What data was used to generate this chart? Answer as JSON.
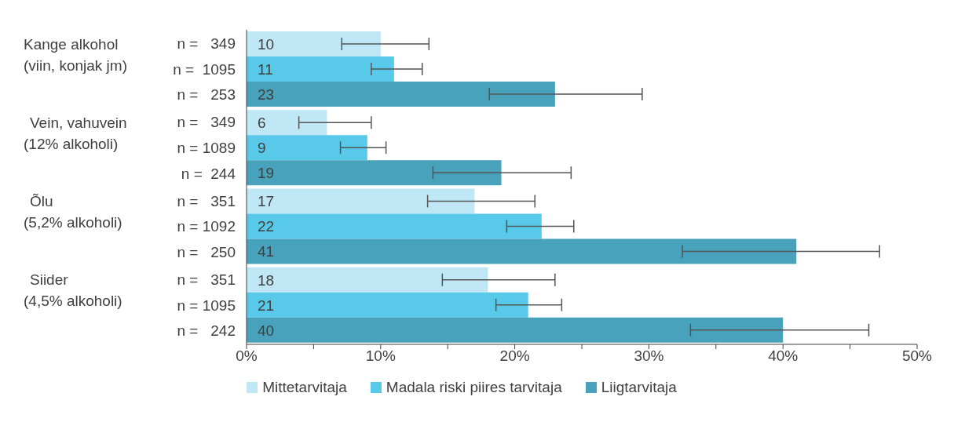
{
  "chart_data": {
    "type": "bar",
    "orientation": "horizontal",
    "categories": [
      "Kange alkohol\n(viin, konjak jm)",
      "Vein, vahuvein\n(12% alkoholi)",
      "Õlu\n(5,2% alkoholi)",
      "Siider\n(4,5% alkoholi)"
    ],
    "series": [
      {
        "name": "Mittetarvitaja",
        "color": "#bfe7f6",
        "values": [
          10,
          6,
          17,
          18
        ],
        "errors": [
          [
            7.1,
            13.6
          ],
          [
            3.9,
            9.3
          ],
          [
            13.5,
            21.5
          ],
          [
            14.6,
            23.0
          ]
        ]
      },
      {
        "name": "Madala riski piires tarvitaja",
        "color": "#58c9e9",
        "values": [
          11,
          9,
          22,
          21
        ],
        "errors": [
          [
            9.3,
            13.1
          ],
          [
            7.0,
            10.4
          ],
          [
            19.4,
            24.4
          ],
          [
            18.6,
            23.5
          ]
        ]
      },
      {
        "name": "Liigtarvitaja",
        "color": "#48a2bb",
        "values": [
          23,
          19,
          41,
          40
        ],
        "errors": [
          [
            18.1,
            29.5
          ],
          [
            13.9,
            24.2
          ],
          [
            32.5,
            47.2
          ],
          [
            33.1,
            46.4
          ]
        ]
      }
    ],
    "xlim": [
      0,
      50
    ],
    "xticks": [
      {
        "value": 0,
        "label": "0%"
      },
      {
        "value": 5,
        "label": null
      },
      {
        "value": 10,
        "label": "10%"
      },
      {
        "value": 15,
        "label": null
      },
      {
        "value": 20,
        "label": "20%"
      },
      {
        "value": 25,
        "label": null
      },
      {
        "value": 30,
        "label": "30%"
      },
      {
        "value": 35,
        "label": null
      },
      {
        "value": 40,
        "label": "40%"
      },
      {
        "value": 45,
        "label": null
      },
      {
        "value": 50,
        "label": "50%"
      }
    ],
    "annotations": [
      "n =   349",
      "n =  1095",
      "n =   253",
      "n =   349",
      "n = 1089",
      "n =  244",
      "n =   351",
      "n = 1092",
      "n =   250",
      "n =   351",
      "n = 1095",
      "n =   242"
    ],
    "data_labels": true,
    "grid": false,
    "legend": "bottom"
  }
}
